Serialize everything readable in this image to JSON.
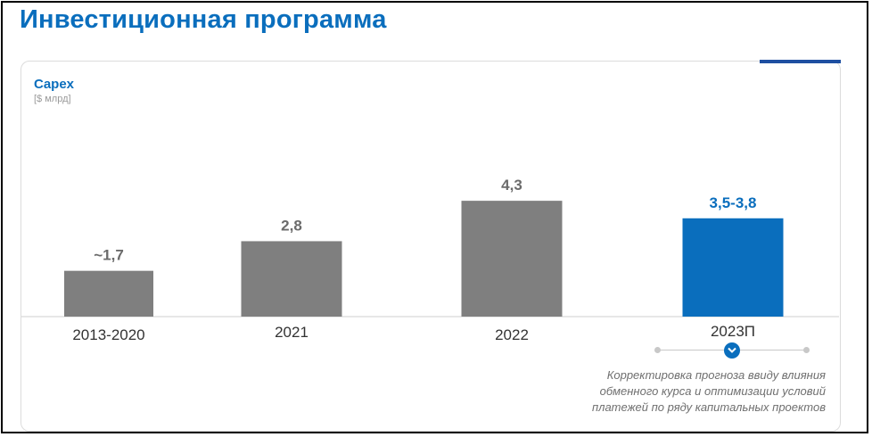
{
  "page": {
    "title": "Инвестиционная программа"
  },
  "chart": {
    "title": "Capex",
    "unit": "[$ млрд]"
  },
  "chart_data": {
    "type": "bar",
    "title": "Capex",
    "ylabel": "[$ млрд]",
    "categories": [
      "2013-2020",
      "2021",
      "2022",
      "2023П"
    ],
    "values": [
      1.7,
      2.8,
      4.3,
      3.65
    ],
    "value_labels": [
      "~1,7",
      "2,8",
      "4,3",
      "3,5-3,8"
    ],
    "bar_colors": [
      "#7f7f7f",
      "#7f7f7f",
      "#7f7f7f",
      "#0a6ebd"
    ],
    "label_colors": [
      "#6b6b6b",
      "#6b6b6b",
      "#6b6b6b",
      "#0a6ebd"
    ],
    "grid": false,
    "legend": "none"
  },
  "footnote": {
    "lines": [
      "Корректировка прогноза ввиду влияния",
      "обменного курса и оптимизации условий",
      "платежей по ряду капитальных проектов"
    ]
  },
  "toggle": {
    "icon": "chevron-down-icon",
    "color": "#0a6ebd"
  }
}
